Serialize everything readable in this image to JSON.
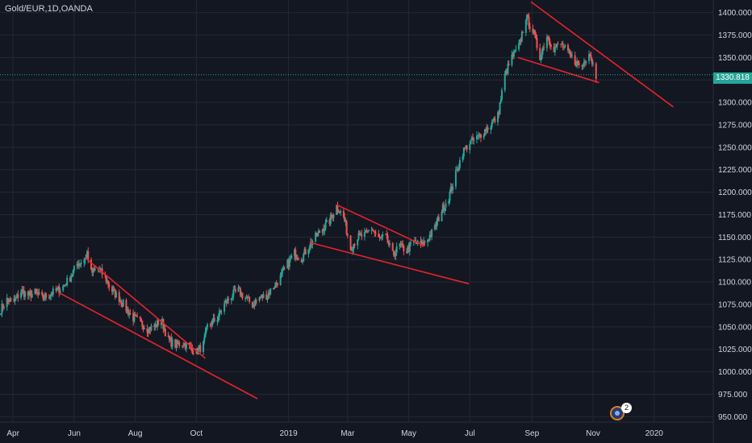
{
  "header": {
    "symbol": "Gold/EUR",
    "interval": "1D",
    "source": "OANDA"
  },
  "last_price": {
    "value": "1330.818",
    "color": "#26a69a"
  },
  "news_badge": {
    "count": "2"
  },
  "colors": {
    "background": "#131722",
    "grid": "#242834",
    "axis_text": "#d1d4dc",
    "up": "#26a69a",
    "down": "#ef5350",
    "trendline": "#e8232a",
    "price_line": "#26a69a"
  },
  "chart_data": {
    "type": "candlestick",
    "title": "Gold/EUR, 1D, OANDA",
    "x_tick_labels": [
      "Apr",
      "Jun",
      "Aug",
      "Oct",
      "2019",
      "Mar",
      "May",
      "Jul",
      "Sep",
      "Nov",
      "2020"
    ],
    "y_tick_labels": [
      "950.000",
      "975.000",
      "1000.000",
      "1025.000",
      "1050.000",
      "1075.000",
      "1100.000",
      "1125.000",
      "1150.000",
      "1175.000",
      "1200.000",
      "1225.000",
      "1250.000",
      "1275.000",
      "1300.000",
      "1325.000",
      "1350.000",
      "1375.000",
      "1400.000"
    ],
    "ylim": [
      944,
      1414
    ],
    "xlim": [
      "2018-03-19",
      "2020-02-29"
    ],
    "grid": true,
    "last_price": 1330.818,
    "price_path": [
      [
        "2018-03-20",
        1070
      ],
      [
        "2018-03-26",
        1080
      ],
      [
        "2018-04-02",
        1078
      ],
      [
        "2018-04-09",
        1090
      ],
      [
        "2018-04-16",
        1085
      ],
      [
        "2018-04-23",
        1088
      ],
      [
        "2018-04-30",
        1082
      ],
      [
        "2018-05-07",
        1086
      ],
      [
        "2018-05-14",
        1090
      ],
      [
        "2018-05-21",
        1095
      ],
      [
        "2018-05-28",
        1105
      ],
      [
        "2018-06-04",
        1120
      ],
      [
        "2018-06-11",
        1125
      ],
      [
        "2018-06-14",
        1133
      ],
      [
        "2018-06-18",
        1110
      ],
      [
        "2018-06-25",
        1115
      ],
      [
        "2018-07-02",
        1105
      ],
      [
        "2018-07-09",
        1090
      ],
      [
        "2018-07-16",
        1082
      ],
      [
        "2018-07-23",
        1070
      ],
      [
        "2018-07-30",
        1060
      ],
      [
        "2018-08-06",
        1055
      ],
      [
        "2018-08-13",
        1048
      ],
      [
        "2018-08-20",
        1050
      ],
      [
        "2018-08-27",
        1058
      ],
      [
        "2018-09-03",
        1035
      ],
      [
        "2018-09-10",
        1030
      ],
      [
        "2018-09-17",
        1032
      ],
      [
        "2018-09-24",
        1028
      ],
      [
        "2018-10-01",
        1022
      ],
      [
        "2018-10-08",
        1030
      ],
      [
        "2018-10-12",
        1050
      ],
      [
        "2018-10-22",
        1060
      ],
      [
        "2018-10-29",
        1075
      ],
      [
        "2018-11-05",
        1085
      ],
      [
        "2018-11-12",
        1090
      ],
      [
        "2018-11-19",
        1082
      ],
      [
        "2018-11-26",
        1075
      ],
      [
        "2018-12-03",
        1082
      ],
      [
        "2018-12-10",
        1085
      ],
      [
        "2018-12-17",
        1095
      ],
      [
        "2018-12-24",
        1105
      ],
      [
        "2018-12-31",
        1120
      ],
      [
        "2019-01-07",
        1132
      ],
      [
        "2019-01-14",
        1126
      ],
      [
        "2019-01-21",
        1140
      ],
      [
        "2019-01-28",
        1150
      ],
      [
        "2019-02-04",
        1160
      ],
      [
        "2019-02-11",
        1168
      ],
      [
        "2019-02-18",
        1185
      ],
      [
        "2019-02-25",
        1172
      ],
      [
        "2019-03-04",
        1138
      ],
      [
        "2019-03-11",
        1150
      ],
      [
        "2019-03-18",
        1152
      ],
      [
        "2019-03-25",
        1160
      ],
      [
        "2019-04-01",
        1148
      ],
      [
        "2019-04-08",
        1150
      ],
      [
        "2019-04-15",
        1130
      ],
      [
        "2019-04-22",
        1140
      ],
      [
        "2019-04-29",
        1135
      ],
      [
        "2019-05-06",
        1145
      ],
      [
        "2019-05-13",
        1140
      ],
      [
        "2019-05-20",
        1148
      ],
      [
        "2019-05-27",
        1160
      ],
      [
        "2019-06-03",
        1180
      ],
      [
        "2019-06-10",
        1195
      ],
      [
        "2019-06-17",
        1220
      ],
      [
        "2019-06-24",
        1245
      ],
      [
        "2019-07-01",
        1255
      ],
      [
        "2019-07-08",
        1260
      ],
      [
        "2019-07-15",
        1268
      ],
      [
        "2019-07-22",
        1275
      ],
      [
        "2019-07-29",
        1285
      ],
      [
        "2019-08-05",
        1330
      ],
      [
        "2019-08-12",
        1350
      ],
      [
        "2019-08-19",
        1362
      ],
      [
        "2019-08-26",
        1395
      ],
      [
        "2019-09-02",
        1380
      ],
      [
        "2019-09-09",
        1350
      ],
      [
        "2019-09-16",
        1375
      ],
      [
        "2019-09-23",
        1360
      ],
      [
        "2019-09-30",
        1365
      ],
      [
        "2019-10-07",
        1355
      ],
      [
        "2019-10-14",
        1345
      ],
      [
        "2019-10-21",
        1340
      ],
      [
        "2019-10-28",
        1358
      ],
      [
        "2019-11-04",
        1330
      ]
    ],
    "trendlines": [
      [
        [
          "2018-05-17",
          1088
        ],
        [
          "2018-12-01",
          970
        ]
      ],
      [
        [
          "2018-06-12",
          1127
        ],
        [
          "2018-10-10",
          1015
        ]
      ],
      [
        [
          "2019-02-18",
          1186
        ],
        [
          "2019-05-17",
          1140
        ]
      ],
      [
        [
          "2019-01-22",
          1144
        ],
        [
          "2019-06-30",
          1098
        ]
      ],
      [
        [
          "2019-08-31",
          1412
        ],
        [
          "2020-01-20",
          1295
        ]
      ],
      [
        [
          "2019-08-18",
          1350
        ],
        [
          "2019-11-07",
          1322
        ]
      ]
    ]
  }
}
